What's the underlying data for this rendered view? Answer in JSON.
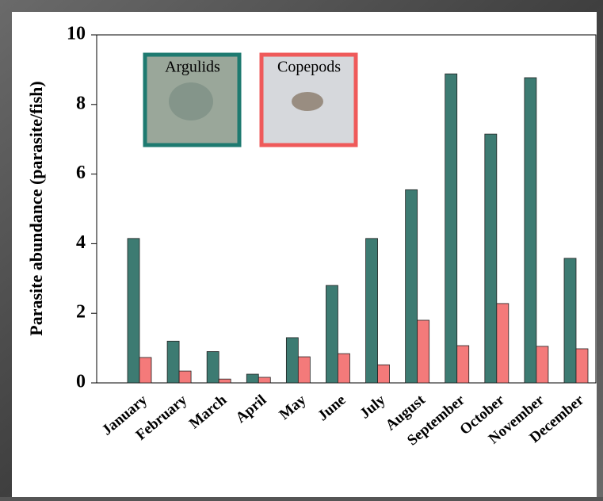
{
  "chart_data": {
    "type": "bar",
    "y_label": "Parasite abundance (parasite/fish)",
    "categories": [
      "January",
      "February",
      "March",
      "April",
      "May",
      "June",
      "July",
      "August",
      "September",
      "October",
      "November",
      "December"
    ],
    "series": [
      {
        "name": "Argulids",
        "color": "#3d7b72",
        "values": [
          4.15,
          1.2,
          0.9,
          0.25,
          1.3,
          2.8,
          4.15,
          5.55,
          8.88,
          7.15,
          8.77,
          3.58
        ]
      },
      {
        "name": "Copepods",
        "color": "#f47a7a",
        "values": [
          0.73,
          0.34,
          0.11,
          0.16,
          0.75,
          0.84,
          0.52,
          1.8,
          1.07,
          2.28,
          1.05,
          0.98
        ]
      }
    ],
    "ylim": [
      0,
      10
    ],
    "yticks": [
      0,
      2,
      4,
      6,
      8,
      10
    ]
  }
}
